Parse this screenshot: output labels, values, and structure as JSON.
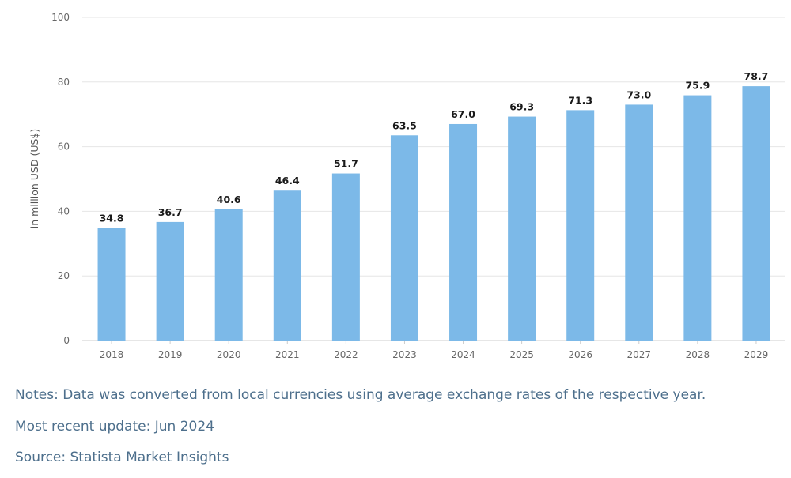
{
  "chart_data": {
    "type": "bar",
    "categories": [
      "2018",
      "2019",
      "2020",
      "2021",
      "2022",
      "2023",
      "2024",
      "2025",
      "2026",
      "2027",
      "2028",
      "2029"
    ],
    "values": [
      34.8,
      36.7,
      40.6,
      46.4,
      51.7,
      63.5,
      67.0,
      69.3,
      71.3,
      73.0,
      75.9,
      78.7
    ],
    "value_labels": [
      "34.8",
      "36.7",
      "40.6",
      "46.4",
      "51.7",
      "63.5",
      "67.0",
      "69.3",
      "71.3",
      "73.0",
      "75.9",
      "78.7"
    ],
    "ylabel": "in million USD (US$)",
    "ylim": [
      0,
      100
    ],
    "yticks": [
      "0",
      "20",
      "40",
      "60",
      "80",
      "100"
    ],
    "grid": true,
    "bar_color": "#7cb9e8"
  },
  "notes": {
    "line1": "Notes: Data was converted from local currencies using average exchange rates of the respective year.",
    "line2": "Most recent update: Jun 2024",
    "line3": "Source: Statista Market Insights"
  },
  "colors": {
    "note_text": "#4d6f8c",
    "gridline": "#e6e6e6"
  }
}
